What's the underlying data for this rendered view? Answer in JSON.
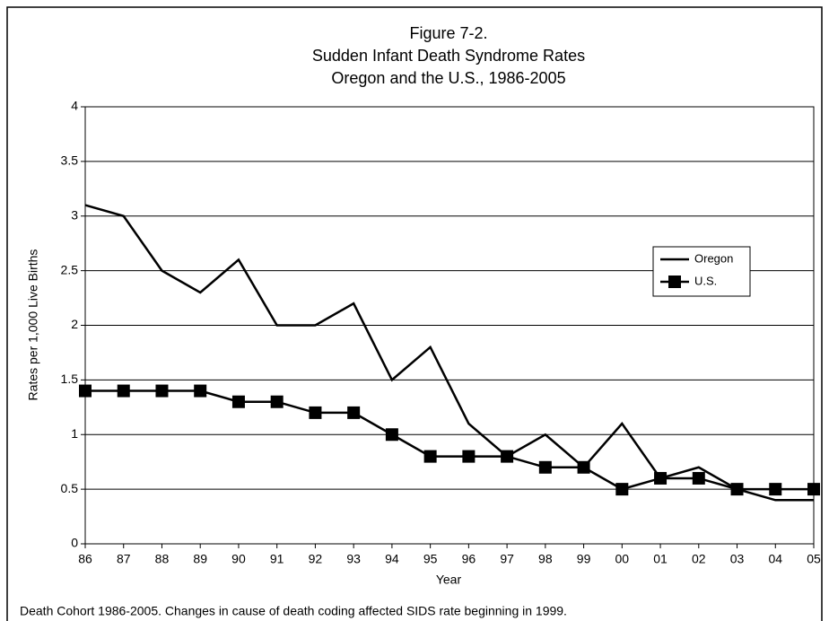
{
  "chart_data": {
    "type": "line",
    "title": [
      "Figure 7-2.",
      "Sudden Infant Death Syndrome Rates",
      "Oregon and the U.S., 1986-2005"
    ],
    "x_label": "Year",
    "y_label": "Rates per 1,000 Live Births",
    "note": "Death Cohort 1986-2005.  Changes in cause of death coding affected SIDS rate beginning in 1999.",
    "categories": [
      "86",
      "87",
      "88",
      "89",
      "90",
      "91",
      "92",
      "93",
      "94",
      "95",
      "96",
      "97",
      "98",
      "99",
      "00",
      "01",
      "02",
      "03",
      "04",
      "05"
    ],
    "series": [
      {
        "name": "Oregon",
        "color": "#000000",
        "marker": "none",
        "values": [
          3.1,
          3.0,
          2.5,
          2.3,
          2.6,
          2.0,
          2.0,
          2.2,
          1.5,
          1.8,
          1.1,
          0.8,
          1.0,
          0.7,
          1.1,
          0.6,
          0.7,
          0.5,
          0.4,
          0.4
        ]
      },
      {
        "name": "U.S.",
        "color": "#000000",
        "marker": "square",
        "values": [
          1.4,
          1.4,
          1.4,
          1.4,
          1.3,
          1.3,
          1.2,
          1.2,
          1.0,
          0.8,
          0.8,
          0.8,
          0.7,
          0.7,
          0.5,
          0.6,
          0.6,
          0.5,
          0.5,
          0.5
        ]
      }
    ],
    "ylim": [
      0,
      4
    ],
    "yticks": [
      0,
      0.5,
      1,
      1.5,
      2,
      2.5,
      3,
      3.5,
      4
    ],
    "grid": true,
    "legend": "right"
  }
}
